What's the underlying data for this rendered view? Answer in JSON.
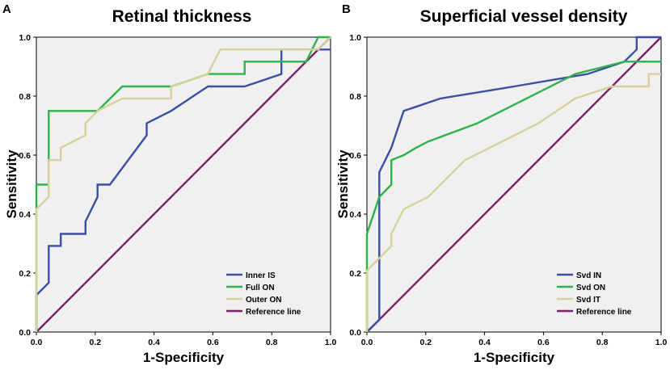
{
  "chart_data": [
    {
      "type": "line",
      "panel": "A",
      "title": "Retinal thickness",
      "xlabel": "1-Specificity",
      "ylabel": "Sensitivity",
      "xlim": [
        0,
        1
      ],
      "ylim": [
        0,
        1
      ],
      "xticks": [
        "0.0",
        "0.2",
        "0.4",
        "0.6",
        "0.8",
        "1.0"
      ],
      "yticks": [
        "0.0",
        "0.2",
        "0.4",
        "0.6",
        "0.8",
        "1.0"
      ],
      "legend_position": "bottom-right",
      "background": "#f0f0f0",
      "series": [
        {
          "name": "Inner IS",
          "color": "#3b4fa3",
          "x": [
            0,
            0,
            0.042,
            0.042,
            0.083,
            0.083,
            0.167,
            0.167,
            0.208,
            0.208,
            0.25,
            0.375,
            0.375,
            0.458,
            0.583,
            0.708,
            0.833,
            0.833,
            1.0
          ],
          "y": [
            0,
            0.125,
            0.167,
            0.292,
            0.292,
            0.333,
            0.333,
            0.375,
            0.458,
            0.5,
            0.5,
            0.667,
            0.708,
            0.75,
            0.833,
            0.833,
            0.875,
            0.958,
            0.958
          ]
        },
        {
          "name": "Full ON",
          "color": "#2fb24a",
          "x": [
            0,
            0,
            0.042,
            0.042,
            0.208,
            0.292,
            0.458,
            0.583,
            0.708,
            0.708,
            0.917,
            0.958,
            0.958,
            1.0
          ],
          "y": [
            0,
            0.5,
            0.5,
            0.75,
            0.75,
            0.833,
            0.833,
            0.875,
            0.875,
            0.917,
            0.917,
            1.0,
            1.0,
            1.0
          ]
        },
        {
          "name": "Outer ON",
          "color": "#d6d09a",
          "x": [
            0,
            0,
            0.042,
            0.042,
            0.083,
            0.083,
            0.167,
            0.167,
            0.208,
            0.292,
            0.458,
            0.458,
            0.583,
            0.625,
            0.958,
            1.0
          ],
          "y": [
            0,
            0.417,
            0.458,
            0.583,
            0.583,
            0.625,
            0.667,
            0.708,
            0.75,
            0.792,
            0.792,
            0.833,
            0.875,
            0.958,
            0.958,
            1.0
          ]
        },
        {
          "name": "Reference line",
          "color": "#7a1f6a",
          "x": [
            0,
            1
          ],
          "y": [
            0,
            1
          ]
        }
      ]
    },
    {
      "type": "line",
      "panel": "B",
      "title": "Superficial vessel density",
      "xlabel": "1-Specificity",
      "ylabel": "Sensitivity",
      "xlim": [
        0,
        1
      ],
      "ylim": [
        0,
        1
      ],
      "xticks": [
        "0.0",
        "0.2",
        "0.4",
        "0.6",
        "0.8",
        "1.0"
      ],
      "yticks": [
        "0.0",
        "0.2",
        "0.4",
        "0.6",
        "0.8",
        "1.0"
      ],
      "legend_position": "bottom-right",
      "background": "#f0f0f0",
      "series": [
        {
          "name": "Svd IN",
          "color": "#3b4fa3",
          "x": [
            0,
            0.042,
            0.042,
            0.083,
            0.125,
            0.25,
            0.5,
            0.75,
            0.875,
            0.917,
            0.917,
            1.0
          ],
          "y": [
            0,
            0.042,
            0.542,
            0.625,
            0.75,
            0.792,
            0.833,
            0.875,
            0.917,
            0.958,
            1.0,
            1.0
          ]
        },
        {
          "name": "Svd ON",
          "color": "#2fb24a",
          "x": [
            0,
            0,
            0.042,
            0.083,
            0.083,
            0.125,
            0.167,
            0.208,
            0.375,
            0.708,
            0.875,
            1.0
          ],
          "y": [
            0,
            0.333,
            0.458,
            0.5,
            0.583,
            0.6,
            0.625,
            0.646,
            0.708,
            0.875,
            0.917,
            0.917
          ]
        },
        {
          "name": "Svd IT",
          "color": "#d6d09a",
          "x": [
            0,
            0,
            0.083,
            0.083,
            0.125,
            0.208,
            0.333,
            0.583,
            0.708,
            0.833,
            0.958,
            0.958,
            1.0
          ],
          "y": [
            0,
            0.208,
            0.292,
            0.333,
            0.417,
            0.458,
            0.583,
            0.708,
            0.792,
            0.833,
            0.833,
            0.875,
            0.875
          ]
        },
        {
          "name": "Reference line",
          "color": "#7a1f6a",
          "x": [
            0,
            1
          ],
          "y": [
            0,
            1
          ]
        }
      ]
    }
  ]
}
